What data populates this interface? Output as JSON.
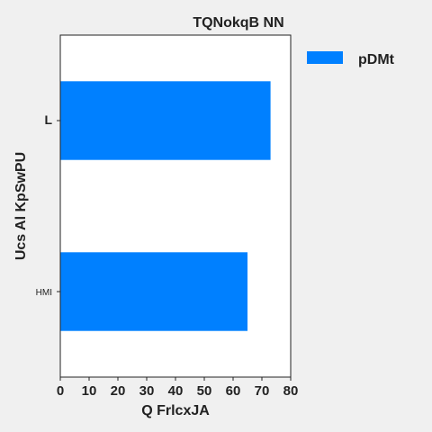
{
  "chart_data": {
    "type": "bar",
    "orientation": "horizontal",
    "title": "TQNokqB  NN",
    "xlabel": "Q FrlcxJA",
    "ylabel": "Ucs  Al KpSwPU",
    "categories": [
      "L",
      "HMI"
    ],
    "series": [
      {
        "name": "pDMt",
        "values": [
          73,
          65
        ],
        "color": "#0080ff"
      }
    ],
    "xlim": [
      0,
      80
    ],
    "xticks": [
      0,
      10,
      20,
      30,
      40,
      50,
      60,
      70,
      80
    ],
    "grid": false,
    "legend_position": "top-right"
  }
}
